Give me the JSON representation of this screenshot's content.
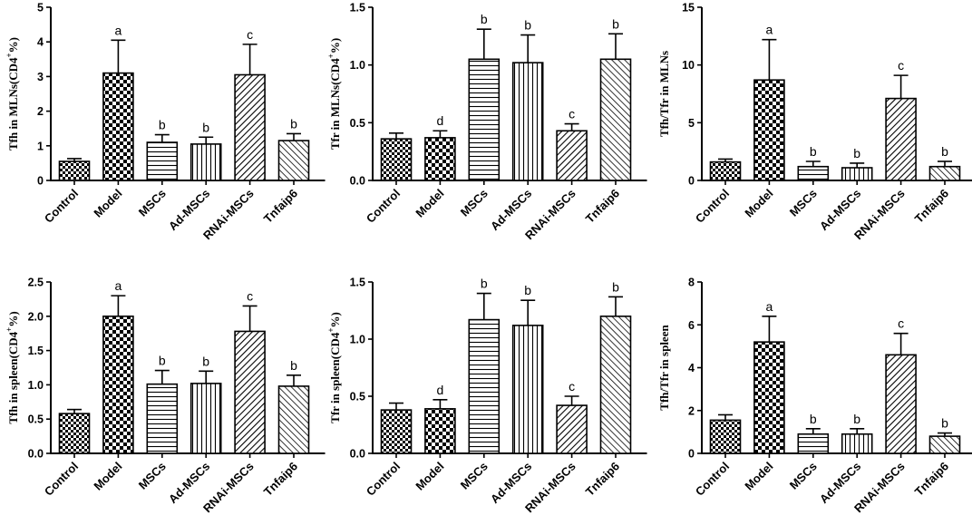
{
  "chart_data": [
    {
      "type": "bar",
      "ylabel": "Tfh in MLNs(CD4+%)",
      "ylabel_main": "Tfh in MLNs(CD4",
      "ylabel_sup": "+",
      "ylabel_tail": "%)",
      "ylim": [
        0,
        5
      ],
      "yticks": [
        "0",
        "1",
        "2",
        "3",
        "4",
        "5"
      ],
      "categories": [
        "Control",
        "Model",
        "MSCs",
        "Ad-MSCs",
        "RNAi-MSCs",
        "Tnfaip6"
      ],
      "values": [
        0.55,
        3.1,
        1.1,
        1.05,
        3.05,
        1.15
      ],
      "errors": [
        0.08,
        0.95,
        0.22,
        0.2,
        0.88,
        0.2
      ],
      "labels": [
        "",
        "a",
        "b",
        "b",
        "c",
        "b"
      ]
    },
    {
      "type": "bar",
      "ylabel": "Tfr in MLNs(CD4+%)",
      "ylabel_main": "Tfr in MLNs(CD4",
      "ylabel_sup": "+",
      "ylabel_tail": "%)",
      "ylim": [
        0,
        1.5
      ],
      "yticks": [
        "0.0",
        "0.5",
        "1.0",
        "1.5"
      ],
      "categories": [
        "Control",
        "Model",
        "MSCs",
        "Ad-MSCs",
        "RNAi-MSCs",
        "Tnfaip6"
      ],
      "values": [
        0.36,
        0.37,
        1.05,
        1.02,
        0.43,
        1.05
      ],
      "errors": [
        0.05,
        0.06,
        0.26,
        0.24,
        0.06,
        0.22
      ],
      "labels": [
        "",
        "d",
        "b",
        "b",
        "c",
        "b"
      ]
    },
    {
      "type": "bar",
      "ylabel": "Tfh/Tfr in MLNs",
      "ylabel_main": "Tfh/Tfr in MLNs",
      "ylabel_sup": "",
      "ylabel_tail": "",
      "ylim": [
        0,
        15
      ],
      "yticks": [
        "0",
        "5",
        "10",
        "15"
      ],
      "categories": [
        "Control",
        "Model",
        "MSCs",
        "Ad-MSCs",
        "RNAi-MSCs",
        "Tnfaip6"
      ],
      "values": [
        1.6,
        8.7,
        1.2,
        1.1,
        7.1,
        1.2
      ],
      "errors": [
        0.25,
        3.5,
        0.45,
        0.4,
        2.0,
        0.45
      ],
      "labels": [
        "",
        "a",
        "b",
        "b",
        "c",
        "b"
      ]
    },
    {
      "type": "bar",
      "ylabel": "Tfh in spleen(CD4+%)",
      "ylabel_main": "Tfh in spleen(CD4",
      "ylabel_sup": "+",
      "ylabel_tail": "%)",
      "ylim": [
        0,
        2.5
      ],
      "yticks": [
        "0.0",
        "0.5",
        "1.0",
        "1.5",
        "2.0",
        "2.5"
      ],
      "categories": [
        "Control",
        "Model",
        "MSCs",
        "Ad-MSCs",
        "RNAi-MSCs",
        "Tnfaip6"
      ],
      "values": [
        0.58,
        2.0,
        1.01,
        1.02,
        1.78,
        0.98
      ],
      "errors": [
        0.06,
        0.3,
        0.2,
        0.18,
        0.37,
        0.16
      ],
      "labels": [
        "",
        "a",
        "b",
        "b",
        "c",
        "b"
      ]
    },
    {
      "type": "bar",
      "ylabel": "Tfr in spleen(CD4+%)",
      "ylabel_main": "Tfr in spleen(CD4",
      "ylabel_sup": "+",
      "ylabel_tail": "%)",
      "ylim": [
        0,
        1.5
      ],
      "yticks": [
        "0.0",
        "0.5",
        "1.0",
        "1.5"
      ],
      "categories": [
        "Control",
        "Model",
        "MSCs",
        "Ad-MSCs",
        "RNAi-MSCs",
        "Tnfaip6"
      ],
      "values": [
        0.38,
        0.39,
        1.17,
        1.12,
        0.42,
        1.2
      ],
      "errors": [
        0.06,
        0.08,
        0.23,
        0.22,
        0.08,
        0.17
      ],
      "labels": [
        "",
        "d",
        "b",
        "b",
        "c",
        "b"
      ]
    },
    {
      "type": "bar",
      "ylabel": "Tfh/Tfr in spleen",
      "ylabel_main": "Tfh/Tfr in spleen",
      "ylabel_sup": "",
      "ylabel_tail": "",
      "ylim": [
        0,
        8
      ],
      "yticks": [
        "0",
        "2",
        "4",
        "6",
        "8"
      ],
      "categories": [
        "Control",
        "Model",
        "MSCs",
        "Ad-MSCs",
        "RNAi-MSCs",
        "Tnfaip6"
      ],
      "values": [
        1.55,
        5.2,
        0.9,
        0.9,
        4.6,
        0.8
      ],
      "errors": [
        0.25,
        1.2,
        0.25,
        0.25,
        1.0,
        0.15
      ],
      "labels": [
        "",
        "a",
        "b",
        "b",
        "c",
        "b"
      ]
    }
  ]
}
